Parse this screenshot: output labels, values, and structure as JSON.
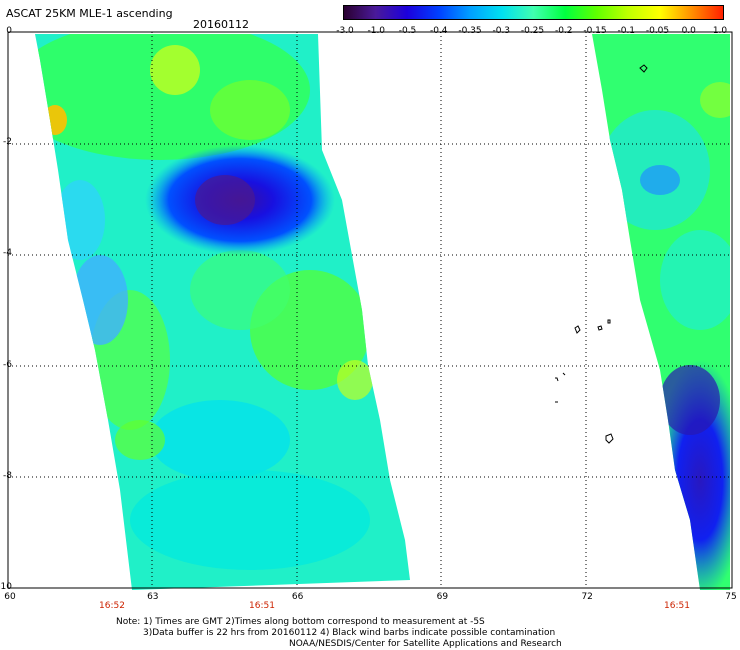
{
  "header": {
    "title": "ASCAT 25KM MLE-1 ascending",
    "date": "20160112"
  },
  "colorbar": {
    "labels": [
      "-3.0",
      "-1.0",
      "-0.5",
      "-0.4",
      "-0.35",
      "-0.3",
      "-0.25",
      "-0.2",
      "-0.15",
      "-0.1",
      "-0.05",
      "0.0",
      "1.0"
    ],
    "colors": [
      "#2a0030",
      "#4a1a9a",
      "#1c00dc",
      "#0040ff",
      "#00a0ff",
      "#00e0f0",
      "#40ffb0",
      "#00ff40",
      "#60ff00",
      "#c0ff00",
      "#ffff00",
      "#ff9000",
      "#ff2000"
    ]
  },
  "axes": {
    "y_ticks": [
      "0",
      "-2",
      "-4",
      "-6",
      "-8",
      "-10"
    ],
    "x_ticks": [
      "60",
      "63",
      "66",
      "69",
      "72",
      "75"
    ],
    "time_labels": [
      "16:52",
      "16:51",
      "16:51"
    ]
  },
  "notes": {
    "line1": "Note: 1) Times are GMT 2)Times along bottom correspond to measurement at -5S",
    "line2": "3)Data buffer is 22 hrs from 20160112 4) Black wind barbs indicate possible contamination",
    "line3": "NOAA/NESDIS/Center for Satellite Applications and Research"
  }
}
